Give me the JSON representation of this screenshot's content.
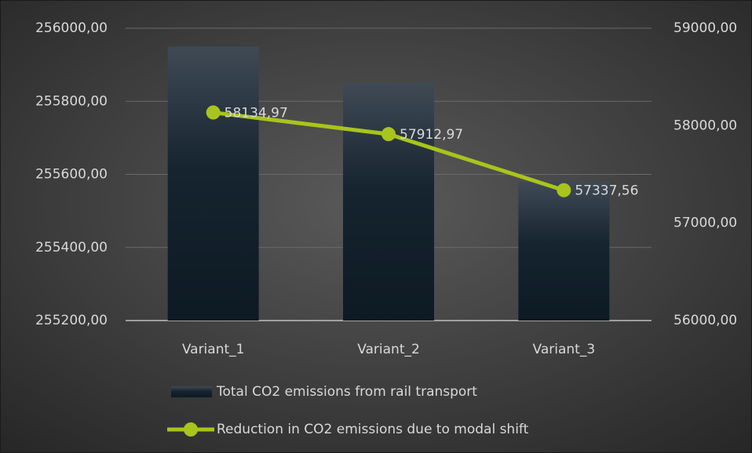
{
  "chart_data": {
    "type": "bar",
    "categories": [
      "Variant_1",
      "Variant_2",
      "Variant_3"
    ],
    "series": [
      {
        "name": "Total CO2 emissions from rail transport",
        "type": "bar",
        "color": "#0d1a24",
        "values": [
          255950,
          255850,
          255580
        ]
      },
      {
        "name": "Reduction in CO2 emissions due to modal shift",
        "type": "line",
        "axis": "y2",
        "color": "#a9c41c",
        "values": [
          58134.97,
          57912.97,
          57337.56
        ],
        "value_labels": [
          "58134,97",
          "57912,97",
          "57337,56"
        ]
      }
    ],
    "ylim": [
      255200,
      256000
    ],
    "yticks": [
      {
        "value": 255200,
        "label": "255200,00"
      },
      {
        "value": 255400,
        "label": "255400,00"
      },
      {
        "value": 255600,
        "label": "255600,00"
      },
      {
        "value": 255800,
        "label": "255800,00"
      },
      {
        "value": 256000,
        "label": "256000,00"
      }
    ],
    "y2lim": [
      56000,
      59000
    ],
    "y2ticks": [
      {
        "value": 56000,
        "label": "56000,00"
      },
      {
        "value": 57000,
        "label": "57000,00"
      },
      {
        "value": 58000,
        "label": "58000,00"
      },
      {
        "value": 59000,
        "label": "59000,00"
      }
    ],
    "grid": true,
    "legend": "bottom"
  }
}
